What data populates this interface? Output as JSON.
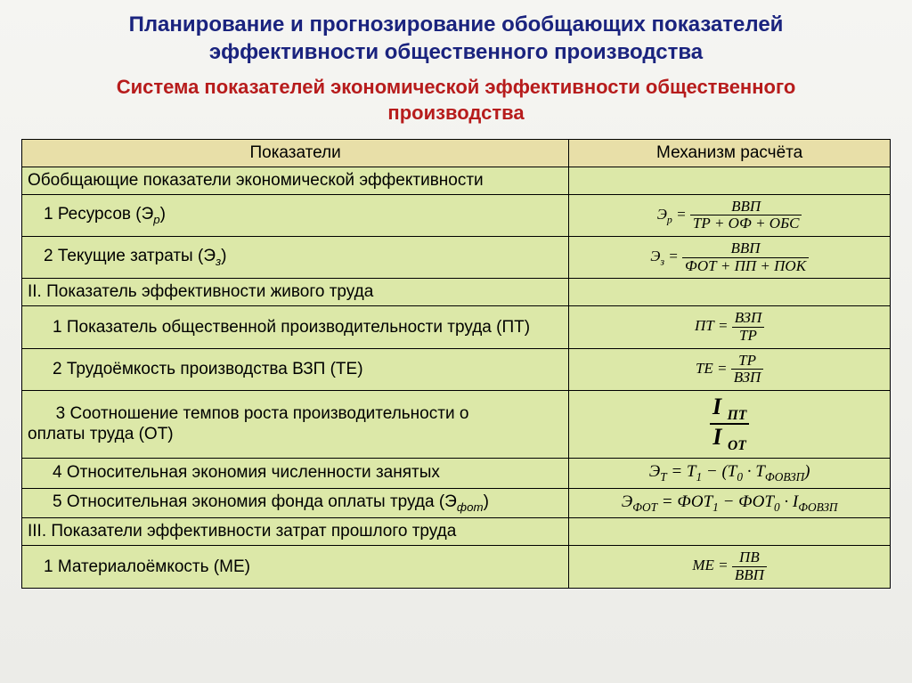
{
  "title_line1": "Планирование и прогнозирование обобщающих показателей",
  "title_line2": "эффективности общественного производства",
  "subtitle_line1": "Система показателей экономической эффективности общественного",
  "subtitle_line2": "производства",
  "colors": {
    "title": "#1a237e",
    "subtitle": "#b71c1c",
    "header_bg": "#e8dfa8",
    "cell_bg": "#dce8a8",
    "border": "#000000",
    "page_bg_top": "#f5f5f2",
    "page_bg_bottom": "#ecece8"
  },
  "table": {
    "col_widths_pct": [
      63,
      37
    ],
    "header": {
      "c1": "Показатели",
      "c2": "Механизм расчёта"
    },
    "rows": [
      {
        "c1": "Обобщающие показатели экономической эффективности",
        "c2_type": "empty"
      },
      {
        "c1": "1 Ресурсов (Э",
        "c1_sub": "р",
        "c1_after": ")",
        "indent": 1,
        "c2_type": "frac_eq",
        "lhs": "Э",
        "lhs_sub": "р",
        "num": "ВВП",
        "den": "ТР + ОФ + ОБС"
      },
      {
        "c1": "2 Текущие затраты (Э",
        "c1_sub": "з",
        "c1_after": ")",
        "indent": 1,
        "c2_type": "frac_eq",
        "lhs": "Э",
        "lhs_sub": "з",
        "num": "ВВП",
        "den": "ФОТ + ПП + ПОК"
      },
      {
        "c1": "II. Показатель эффективности живого труда",
        "c2_type": "empty"
      },
      {
        "c1": "1 Показатель общественной производительности труда (ПТ)",
        "indent": 2,
        "c2_type": "frac_eq",
        "lhs": "ПТ",
        "num": "ВЗП",
        "den": "ТР"
      },
      {
        "c1": "2 Трудоёмкость производства ВЗП (ТЕ)",
        "indent": 2,
        "c2_type": "frac_eq",
        "lhs": "ТЕ",
        "num": "ТР",
        "den": "ВЗП"
      },
      {
        "c1_multi": [
          "     3 Соотношение темпов роста производительности о",
          "оплаты труда (ОТ)"
        ],
        "indent": 0,
        "c2_type": "bigfrac",
        "num": "I",
        "num_sub": "ПТ",
        "den": "I",
        "den_sub": "ОТ"
      },
      {
        "c1": "4 Относительная экономия численности занятых",
        "indent": 2,
        "c2_type": "expr",
        "expr_html": "Э<sub>Т</sub> = Т<sub>1</sub> − (Т<sub>0</sub> · Т<sub>ФОВЗП</sub>)"
      },
      {
        "c1": "5 Относительная экономия фонда оплаты труда (Э",
        "c1_sub": "фот",
        "c1_after": ")",
        "indent": 2,
        "c2_type": "expr",
        "expr_html": "Э<sub>ФОТ</sub> = ФОТ<sub>1</sub> − ФОТ<sub>0</sub> · I<sub>ФОВЗП</sub>"
      },
      {
        "c1": "III. Показатели эффективности затрат прошлого труда",
        "c2_type": "empty"
      },
      {
        "c1": "1 Материалоёмкость (МЕ)",
        "indent": 1,
        "c2_type": "frac_eq",
        "lhs": "МЕ",
        "num": "ПВ",
        "den": "ВВП"
      }
    ]
  }
}
